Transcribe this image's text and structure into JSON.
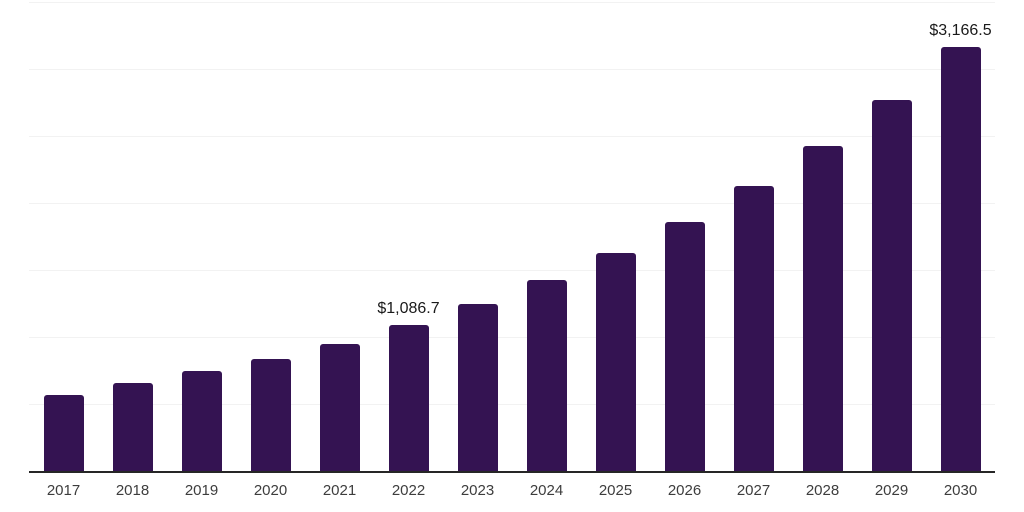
{
  "chart_data": {
    "type": "bar",
    "title": "",
    "xlabel": "",
    "ylabel": "",
    "categories": [
      "2017",
      "2018",
      "2019",
      "2020",
      "2021",
      "2022",
      "2023",
      "2024",
      "2025",
      "2026",
      "2027",
      "2028",
      "2029",
      "2030"
    ],
    "values": [
      565,
      655,
      745,
      835,
      950,
      1086.7,
      1245,
      1425,
      1628,
      1858,
      2125,
      2425,
      2772,
      3166.5
    ],
    "value_labels": {
      "2022": "$1,086.7",
      "2030": "$3,166.5"
    },
    "ylim": [
      0,
      3500
    ],
    "gridline_step": 500,
    "grid": "horizontal-only",
    "legend": "none",
    "colors": {
      "bar": "#341352",
      "axis_line": "#262626",
      "gridline": "#F2F2F2",
      "value_label": "#1A1A1A",
      "tick_label": "#3D3D3D",
      "background": "#FFFFFF"
    }
  }
}
